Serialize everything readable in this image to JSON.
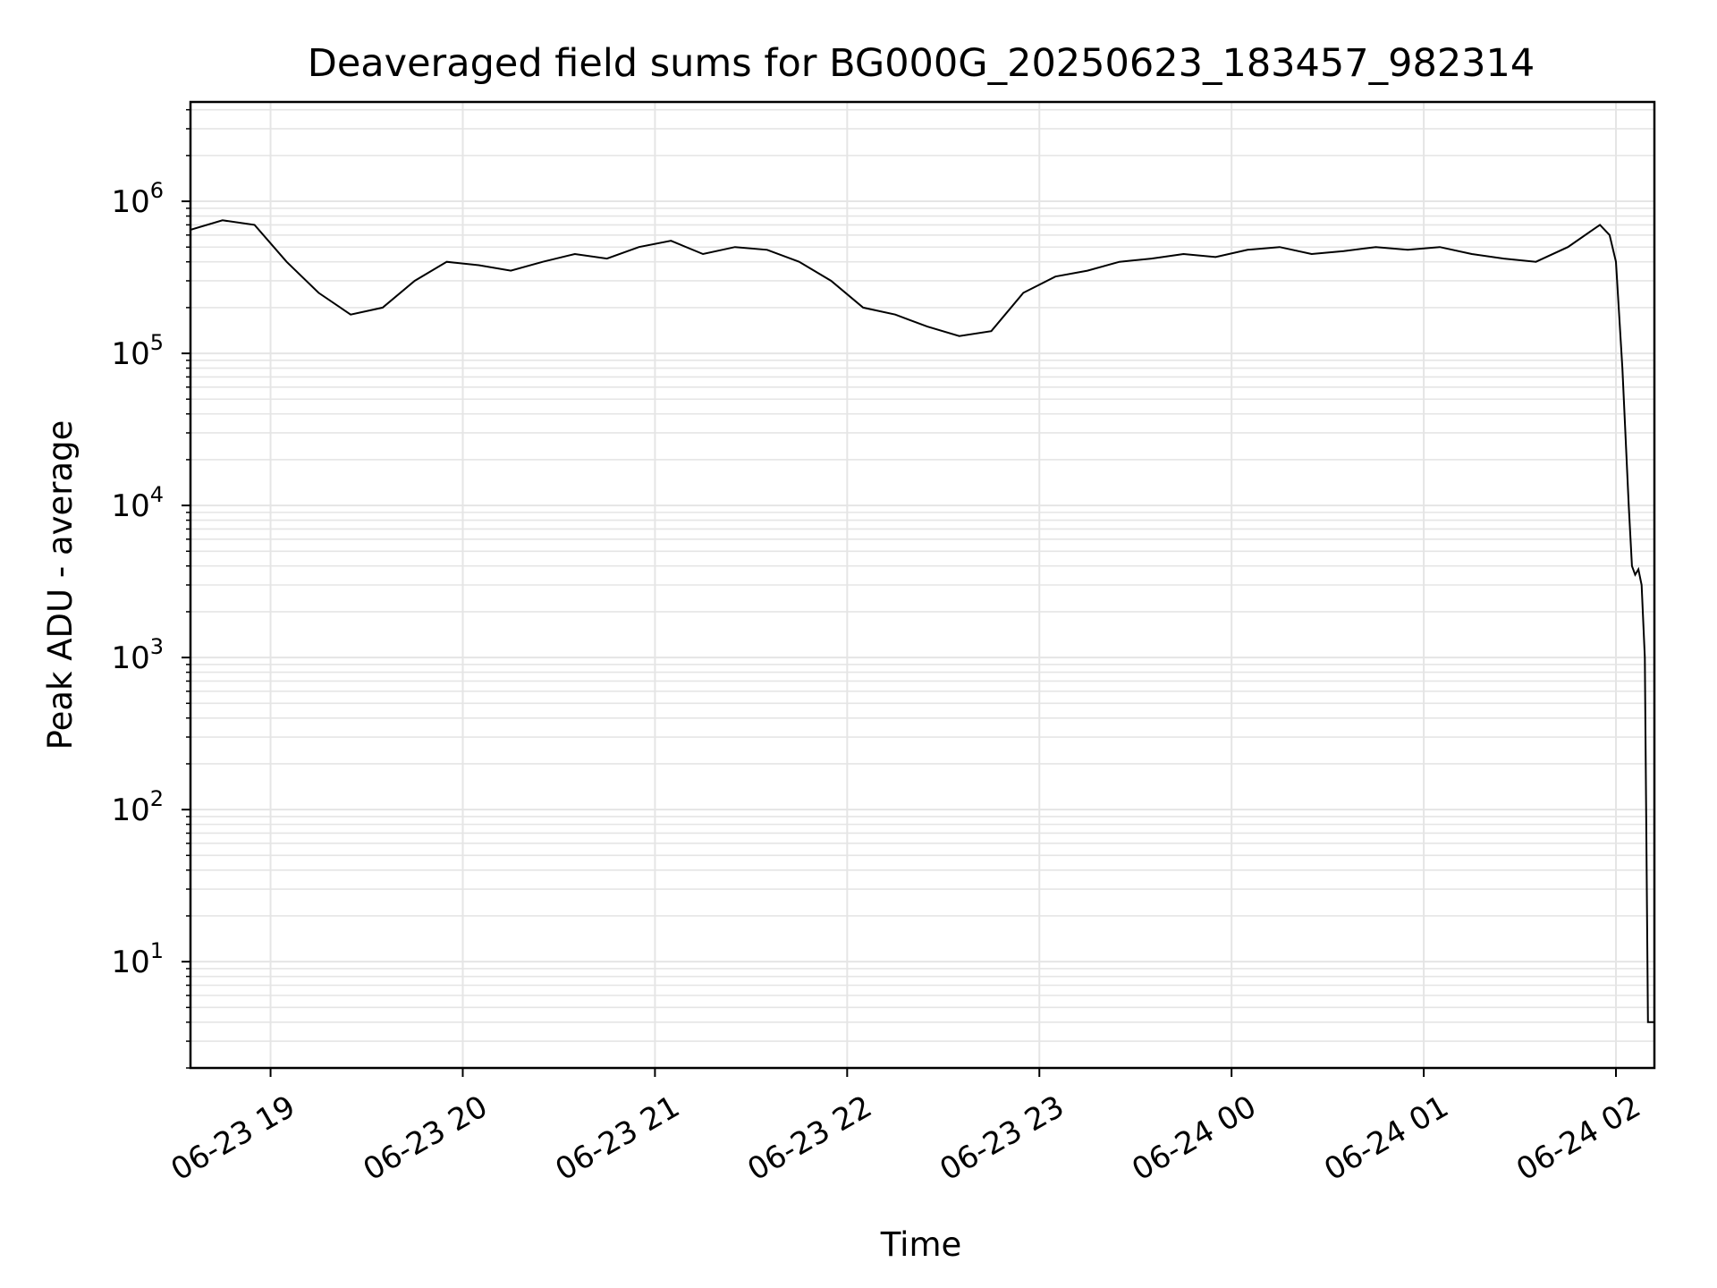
{
  "chart_data": {
    "type": "line",
    "title": "Deaveraged field sums for BG000G_20250623_183457_982314",
    "xlabel": "Time",
    "ylabel": "Peak ADU - average",
    "yscale": "log",
    "ylim": [
      2,
      4500000
    ],
    "xlim": [
      "2025-06-23 18:35",
      "2025-06-24 02:12"
    ],
    "grid": true,
    "line_color": "#000000",
    "grid_color": "#e5e5e5",
    "x_ticks": [
      {
        "t": "2025-06-23 19:00",
        "label": "06-23 19"
      },
      {
        "t": "2025-06-23 20:00",
        "label": "06-23 20"
      },
      {
        "t": "2025-06-23 21:00",
        "label": "06-23 21"
      },
      {
        "t": "2025-06-23 22:00",
        "label": "06-23 22"
      },
      {
        "t": "2025-06-23 23:00",
        "label": "06-23 23"
      },
      {
        "t": "2025-06-24 00:00",
        "label": "06-24 00"
      },
      {
        "t": "2025-06-24 01:00",
        "label": "06-24 01"
      },
      {
        "t": "2025-06-24 02:00",
        "label": "06-24 02"
      }
    ],
    "y_ticks": [
      {
        "value": 10,
        "base": "10",
        "exp": "1"
      },
      {
        "value": 100,
        "base": "10",
        "exp": "2"
      },
      {
        "value": 1000,
        "base": "10",
        "exp": "3"
      },
      {
        "value": 10000,
        "base": "10",
        "exp": "4"
      },
      {
        "value": 100000,
        "base": "10",
        "exp": "5"
      },
      {
        "value": 1000000,
        "base": "10",
        "exp": "6"
      }
    ],
    "series": [
      {
        "x": [
          "2025-06-23 18:35",
          "2025-06-23 18:45",
          "2025-06-23 18:55",
          "2025-06-23 19:05",
          "2025-06-23 19:15",
          "2025-06-23 19:25",
          "2025-06-23 19:35",
          "2025-06-23 19:45",
          "2025-06-23 19:55",
          "2025-06-23 20:05",
          "2025-06-23 20:15",
          "2025-06-23 20:25",
          "2025-06-23 20:35",
          "2025-06-23 20:45",
          "2025-06-23 20:55",
          "2025-06-23 21:05",
          "2025-06-23 21:15",
          "2025-06-23 21:25",
          "2025-06-23 21:35",
          "2025-06-23 21:45",
          "2025-06-23 21:55",
          "2025-06-23 22:05",
          "2025-06-23 22:15",
          "2025-06-23 22:25",
          "2025-06-23 22:35",
          "2025-06-23 22:45",
          "2025-06-23 22:55",
          "2025-06-23 23:05",
          "2025-06-23 23:15",
          "2025-06-23 23:25",
          "2025-06-23 23:35",
          "2025-06-23 23:45",
          "2025-06-23 23:55",
          "2025-06-24 00:05",
          "2025-06-24 00:15",
          "2025-06-24 00:25",
          "2025-06-24 00:35",
          "2025-06-24 00:45",
          "2025-06-24 00:55",
          "2025-06-24 01:05",
          "2025-06-24 01:15",
          "2025-06-24 01:25",
          "2025-06-24 01:35",
          "2025-06-24 01:45",
          "2025-06-24 01:55",
          "2025-06-24 01:58",
          "2025-06-24 02:00",
          "2025-06-24 02:02",
          "2025-06-24 02:04",
          "2025-06-24 02:05",
          "2025-06-24 02:06",
          "2025-06-24 02:07",
          "2025-06-24 02:08",
          "2025-06-24 02:09",
          "2025-06-24 02:10",
          "2025-06-24 02:11",
          "2025-06-24 02:12"
        ],
        "y": [
          650000,
          750000,
          700000,
          400000,
          250000,
          180000,
          200000,
          300000,
          400000,
          380000,
          350000,
          400000,
          450000,
          420000,
          500000,
          550000,
          450000,
          500000,
          480000,
          400000,
          300000,
          200000,
          180000,
          150000,
          130000,
          140000,
          250000,
          320000,
          350000,
          400000,
          420000,
          450000,
          430000,
          480000,
          500000,
          450000,
          470000,
          500000,
          480000,
          500000,
          450000,
          420000,
          400000,
          500000,
          700000,
          600000,
          400000,
          80000,
          10000,
          4000,
          3500,
          3800,
          3000,
          1000,
          4,
          4,
          4
        ]
      }
    ]
  }
}
